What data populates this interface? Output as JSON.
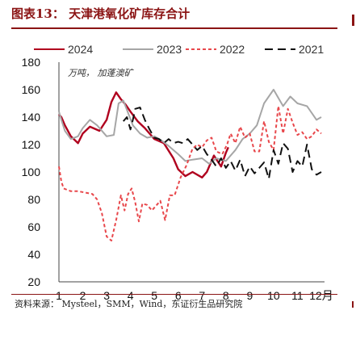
{
  "figure": {
    "title": "图表13：  天津港氧化矿库存合计",
    "source": "资料来源：  Mysteel，SMM，Wind，东证衍生品研究院"
  },
  "colors": {
    "brand": "#8b1414",
    "s2024": "#b0001e",
    "s2023": "#a6a6a6",
    "s2022": "#e8474b",
    "s2021": "#111111"
  },
  "chart_data": {
    "type": "line",
    "unit_annotation": "万吨， 加蓬澳矿",
    "x_ticks": [
      "1",
      "2",
      "3",
      "4",
      "5",
      "6",
      "7",
      "8",
      "9",
      "10",
      "11",
      "12月"
    ],
    "xlim": [
      1,
      12
    ],
    "ylim": [
      20,
      180
    ],
    "y_ticks": [
      20,
      40,
      60,
      80,
      100,
      120,
      140,
      160,
      180
    ],
    "grid": false,
    "legend_position": "top",
    "series": [
      {
        "name": "2024",
        "style": "solid",
        "color": "#b0001e",
        "x": [
          1,
          1.1,
          1.25,
          1.5,
          1.8,
          2.0,
          2.3,
          2.7,
          3.0,
          3.2,
          3.4,
          3.6,
          3.8,
          4.0,
          4.3,
          4.6,
          5.0,
          5.4,
          5.8,
          6.0,
          6.3,
          6.6,
          7.0,
          7.2,
          7.5,
          7.8,
          8.0,
          8.1
        ],
        "y": [
          142,
          140,
          134,
          126,
          121,
          128,
          133,
          130,
          138,
          151,
          158,
          153,
          149,
          144,
          137,
          132,
          124,
          121,
          110,
          102,
          97,
          100,
          96,
          100,
          112,
          104,
          114,
          118
        ]
      },
      {
        "name": "2023",
        "style": "solid",
        "color": "#a6a6a6",
        "x": [
          1,
          1.1,
          1.25,
          1.5,
          1.8,
          2.0,
          2.3,
          2.6,
          3.0,
          3.3,
          3.5,
          3.7,
          3.9,
          4.1,
          4.4,
          4.7,
          5.0,
          5.3,
          5.6,
          6.0,
          6.3,
          6.6,
          7.0,
          7.3,
          7.6,
          8.0,
          8.4,
          8.7,
          9.0,
          9.3,
          9.6,
          10.0,
          10.2,
          10.4,
          10.7,
          11.0,
          11.4,
          11.8,
          12.0
        ],
        "y": [
          144,
          138,
          130,
          124,
          126,
          132,
          138,
          134,
          126,
          127,
          150,
          152,
          143,
          134,
          128,
          125,
          126,
          123,
          119,
          113,
          108,
          109,
          110,
          106,
          110,
          108,
          116,
          124,
          128,
          134,
          150,
          160,
          154,
          148,
          155,
          150,
          148,
          138,
          140
        ]
      },
      {
        "name": "2022",
        "style": "dashed",
        "color": "#e8474b",
        "x": [
          1,
          1.1,
          1.2,
          1.35,
          1.5,
          1.8,
          2.1,
          2.4,
          2.6,
          2.8,
          3.0,
          3.2,
          3.4,
          3.6,
          3.75,
          3.9,
          4.05,
          4.2,
          4.35,
          4.5,
          4.7,
          4.9,
          5.05,
          5.25,
          5.45,
          5.65,
          5.85,
          6.1,
          6.35,
          6.6,
          6.8,
          7.0,
          7.2,
          7.4,
          7.6,
          7.85,
          8.05,
          8.2,
          8.4,
          8.6,
          8.8,
          9.0,
          9.2,
          9.4,
          9.6,
          9.8,
          10.0,
          10.2,
          10.4,
          10.6,
          10.8,
          11.0,
          11.2,
          11.4,
          11.6,
          11.8,
          12.0
        ],
        "y": [
          104,
          93,
          88,
          87,
          86,
          86,
          85,
          84,
          80,
          70,
          53,
          50,
          65,
          83,
          72,
          84,
          88,
          78,
          64,
          77,
          76,
          72,
          75,
          79,
          65,
          83,
          83,
          96,
          105,
          117,
          120,
          118,
          123,
          125,
          115,
          113,
          120,
          128,
          121,
          133,
          125,
          128,
          115,
          115,
          137,
          122,
          116,
          148,
          128,
          146,
          136,
          127,
          129,
          124,
          126,
          131,
          128
        ]
      },
      {
        "name": "2021",
        "style": "longdash",
        "color": "#111111",
        "x": [
          3.7,
          3.85,
          4.0,
          4.1,
          4.2,
          4.4,
          4.6,
          4.8,
          5.0,
          5.2,
          5.4,
          5.6,
          5.8,
          6.0,
          6.2,
          6.4,
          6.6,
          6.8,
          7.0,
          7.2,
          7.4,
          7.6,
          7.8,
          8.0,
          8.2,
          8.4,
          8.6,
          8.8,
          9.0,
          9.2,
          9.4,
          9.6,
          9.8,
          10.0,
          10.2,
          10.4,
          10.6,
          10.8,
          11.0,
          11.2,
          11.4,
          11.6,
          11.8,
          12.0
        ],
        "y": [
          137,
          140,
          131,
          138,
          146,
          147,
          138,
          131,
          125,
          124,
          121,
          124,
          121,
          122,
          121,
          124,
          120,
          116,
          119,
          113,
          109,
          104,
          110,
          103,
          108,
          101,
          109,
          97,
          104,
          99,
          103,
          107,
          95,
          116,
          106,
          121,
          117,
          100,
          108,
          104,
          120,
          102,
          98,
          100
        ]
      }
    ]
  }
}
